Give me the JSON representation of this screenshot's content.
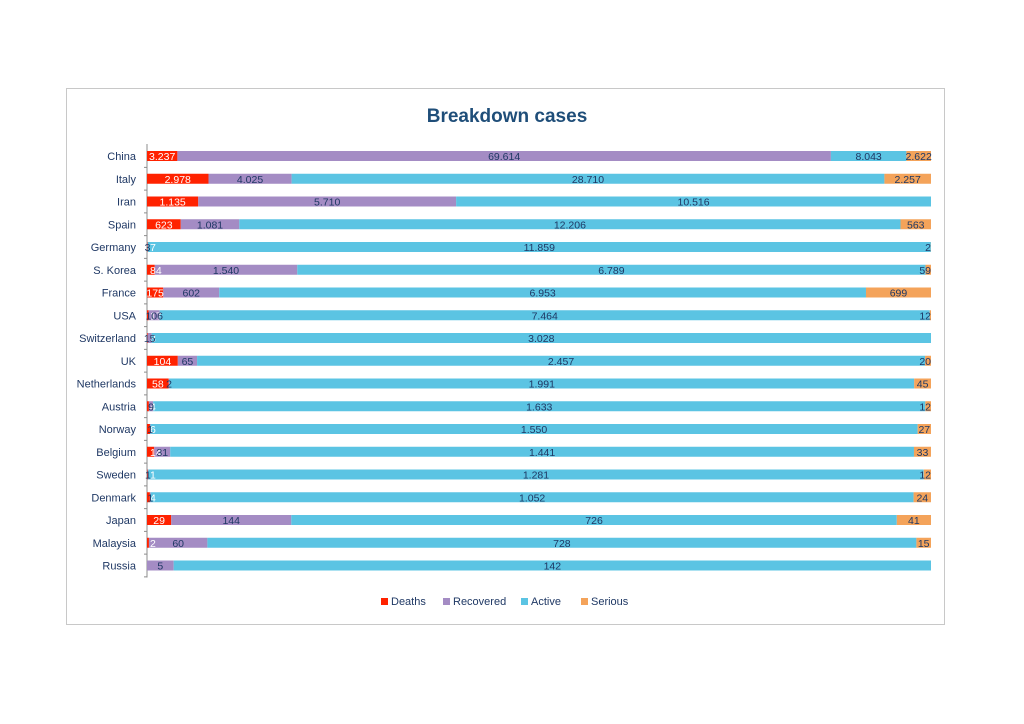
{
  "chart_data": {
    "type": "bar",
    "orientation": "horizontal",
    "stacked": "100%",
    "title": "Breakdown cases",
    "categories": [
      "China",
      "Italy",
      "Iran",
      "Spain",
      "Germany",
      "S. Korea",
      "France",
      "USA",
      "Switzerland",
      "UK",
      "Netherlands",
      "Austria",
      "Norway",
      "Belgium",
      "Sweden",
      "Denmark",
      "Japan",
      "Malaysia",
      "Russia"
    ],
    "series": [
      {
        "name": "Deaths",
        "color": "#ff2200",
        "values": [
          3237,
          2978,
          1135,
          623,
          7,
          84,
          175,
          17,
          3,
          104,
          58,
          4,
          6,
          14,
          1,
          4,
          29,
          2,
          0
        ],
        "labels": [
          "3.237",
          "2.978",
          "1.135",
          "623",
          "7",
          "84",
          "175",
          "17",
          "3",
          "104",
          "58",
          "4",
          "6",
          "14",
          "1",
          "4",
          "29",
          "2",
          ""
        ]
      },
      {
        "name": "Recovered",
        "color": "#a48cc4",
        "values": [
          69614,
          4025,
          5710,
          1081,
          3,
          1540,
          602,
          106,
          15,
          65,
          2,
          9,
          1,
          31,
          1,
          1,
          144,
          60,
          5
        ],
        "labels": [
          "69.614",
          "4.025",
          "5.710",
          "1.081",
          "3",
          "1.540",
          "602",
          "106",
          "15",
          "65",
          "2",
          "9",
          "1",
          "31",
          "1",
          "1",
          "144",
          "60",
          "5"
        ]
      },
      {
        "name": "Active",
        "color": "#5bc4e3",
        "values": [
          8043,
          28710,
          10516,
          12206,
          11859,
          6789,
          6953,
          7464,
          3028,
          2457,
          1991,
          1633,
          1550,
          1441,
          1281,
          1052,
          726,
          728,
          142
        ],
        "labels": [
          "8.043",
          "28.710",
          "10.516",
          "12.206",
          "11.859",
          "6.789",
          "6.953",
          "7.464",
          "3.028",
          "2.457",
          "1.991",
          "1.633",
          "1.550",
          "1.441",
          "1.281",
          "1.052",
          "726",
          "728",
          "142"
        ]
      },
      {
        "name": "Serious",
        "color": "#f4a35a",
        "values": [
          2622,
          2257,
          0,
          563,
          2,
          59,
          699,
          12,
          0,
          20,
          45,
          12,
          27,
          33,
          12,
          24,
          41,
          15,
          0
        ],
        "labels": [
          "2.622",
          "2.257",
          "",
          "563",
          "2",
          "59",
          "699",
          "12",
          "",
          "20",
          "45",
          "12",
          "27",
          "33",
          "12",
          "24",
          "41",
          "15",
          ""
        ]
      }
    ],
    "legend": "bottom",
    "grid": false,
    "xaxis_visible": false
  }
}
